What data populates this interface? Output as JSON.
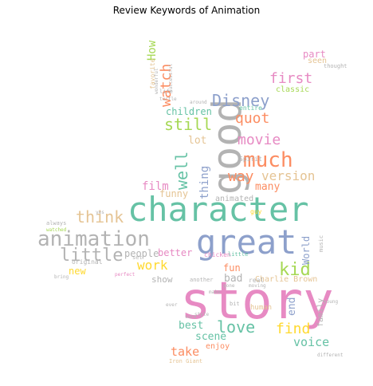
{
  "title": "Review Keywords of Animation",
  "palette": {
    "teal": "#66c2a5",
    "orange": "#fc8d62",
    "blue": "#8da0cb",
    "pink": "#e78ac3",
    "green": "#a6d854",
    "yellow": "#ffd92f",
    "tan": "#e5c494",
    "gray": "#b3b3b3"
  },
  "words": [
    {
      "text": "story",
      "color": "#e78ac3"
    },
    {
      "text": "character",
      "color": "#66c2a5"
    },
    {
      "text": "great",
      "color": "#8da0cb"
    },
    {
      "text": "good",
      "color": "#b3b3b3"
    },
    {
      "text": "animation",
      "color": "#b3b3b3"
    },
    {
      "text": "much",
      "color": "#fc8d62"
    },
    {
      "text": "little",
      "color": "#b3b3b3"
    },
    {
      "text": "love",
      "color": "#66c2a5"
    },
    {
      "text": "Disney",
      "color": "#8da0cb"
    },
    {
      "text": "first",
      "color": "#e78ac3"
    },
    {
      "text": "movie",
      "color": "#e78ac3"
    },
    {
      "text": "quot",
      "color": "#fc8d62"
    },
    {
      "text": "think",
      "color": "#e5c494"
    },
    {
      "text": "kid",
      "color": "#a6d854"
    },
    {
      "text": "still",
      "color": "#a6d854"
    },
    {
      "text": "well",
      "color": "#66c2a5"
    },
    {
      "text": "watch",
      "color": "#fc8d62"
    },
    {
      "text": "find",
      "color": "#ffd92f"
    },
    {
      "text": "version",
      "color": "#e5c494"
    },
    {
      "text": "way",
      "color": "#fc8d62"
    },
    {
      "text": "work",
      "color": "#ffd92f"
    },
    {
      "text": "film",
      "color": "#e78ac3"
    },
    {
      "text": "many",
      "color": "#fc8d62"
    },
    {
      "text": "thing",
      "color": "#8da0cb"
    },
    {
      "text": "take",
      "color": "#fc8d62"
    },
    {
      "text": "voice",
      "color": "#66c2a5"
    },
    {
      "text": "scene",
      "color": "#66c2a5"
    },
    {
      "text": "best",
      "color": "#66c2a5"
    },
    {
      "text": "part",
      "color": "#e78ac3"
    },
    {
      "text": "children",
      "color": "#66c2a5"
    },
    {
      "text": "better",
      "color": "#e78ac3"
    },
    {
      "text": "funny",
      "color": "#e5c494"
    },
    {
      "text": "lot",
      "color": "#e5c494"
    },
    {
      "text": "new",
      "color": "#ffd92f"
    },
    {
      "text": "people",
      "color": "#b3b3b3"
    },
    {
      "text": "end",
      "color": "#8da0cb"
    },
    {
      "text": "World",
      "color": "#8da0cb"
    },
    {
      "text": "bad",
      "color": "#b3b3b3"
    },
    {
      "text": "fun",
      "color": "#fc8d62"
    },
    {
      "text": "show",
      "color": "#b3b3b3"
    },
    {
      "text": "enjoy",
      "color": "#fc8d62"
    },
    {
      "text": "Charlie Brown",
      "color": "#e5c494"
    },
    {
      "text": "family",
      "color": "#b3b3b3"
    },
    {
      "text": "animated",
      "color": "#b3b3b3"
    },
    {
      "text": "classic",
      "color": "#a6d854"
    },
    {
      "text": "seen",
      "color": "#e5c494"
    },
    {
      "text": "How",
      "color": "#a6d854"
    },
    {
      "text": "original",
      "color": "#b3b3b3"
    },
    {
      "text": "real",
      "color": "#b3b3b3"
    },
    {
      "text": "human",
      "color": "#e5c494"
    },
    {
      "text": "favorite",
      "color": "#e5c494"
    },
    {
      "text": "entire",
      "color": "#66c2a5"
    },
    {
      "text": "Spirit",
      "color": "#b3b3b3"
    },
    {
      "text": "thought",
      "color": "#b3b3b3"
    },
    {
      "text": "chicken",
      "color": "#e78ac3"
    },
    {
      "text": "another",
      "color": "#b3b3b3"
    },
    {
      "text": "guy",
      "color": "#ffd92f"
    },
    {
      "text": "music",
      "color": "#b3b3b3"
    },
    {
      "text": "wonderful",
      "color": "#b3b3b3"
    },
    {
      "text": "always",
      "color": "#b3b3b3"
    },
    {
      "text": "watched",
      "color": "#a6d854"
    },
    {
      "text": "life",
      "color": "#b3b3b3"
    },
    {
      "text": "turtle",
      "color": "#b3b3b3"
    },
    {
      "text": "make",
      "color": "#b3b3b3"
    },
    {
      "text": "bit",
      "color": "#b3b3b3"
    },
    {
      "text": "around",
      "color": "#b3b3b3"
    },
    {
      "text": "Iron Giant",
      "color": "#e5c494"
    },
    {
      "text": "moving",
      "color": "#b3b3b3"
    },
    {
      "text": "little",
      "color": "#66c2a5"
    },
    {
      "text": "young",
      "color": "#b3b3b3"
    },
    {
      "text": "different",
      "color": "#b3b3b3"
    },
    {
      "text": "successful",
      "color": "#b3b3b3"
    },
    {
      "text": "set",
      "color": "#b3b3b3"
    },
    {
      "text": "bring",
      "color": "#b3b3b3"
    },
    {
      "text": "gone",
      "color": "#b3b3b3"
    },
    {
      "text": "ever",
      "color": "#b3b3b3"
    },
    {
      "text": "yes",
      "color": "#b3b3b3"
    },
    {
      "text": "perfect",
      "color": "#e78ac3"
    },
    {
      "text": "sure",
      "color": "#b3b3b3"
    },
    {
      "text": "style",
      "color": "#b3b3b3"
    }
  ]
}
